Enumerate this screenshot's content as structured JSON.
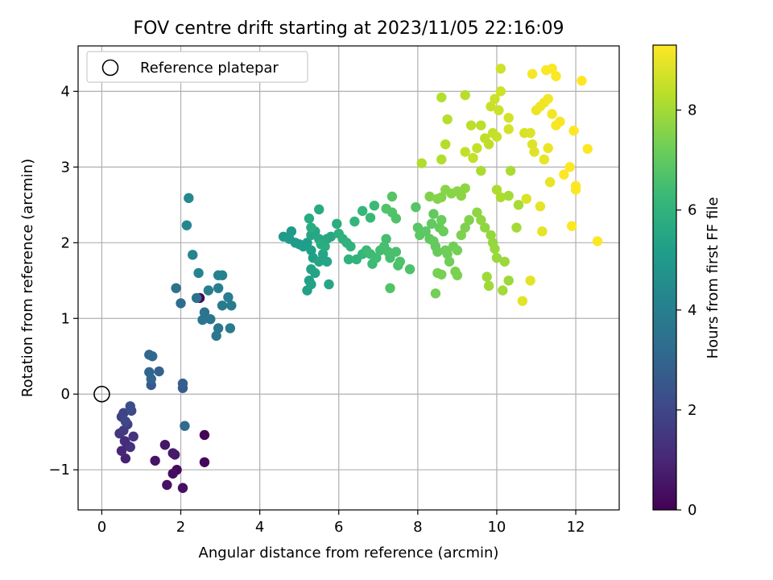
{
  "chart_data": {
    "type": "scatter",
    "title": "FOV centre drift starting at 2023/11/05 22:16:09",
    "xlabel": "Angular distance from reference (arcmin)",
    "ylabel": "Rotation from reference (arcmin)",
    "xlim": [
      -0.6,
      13.1
    ],
    "ylim": [
      -1.53,
      4.6
    ],
    "xticks": [
      0,
      2,
      4,
      6,
      8,
      10,
      12
    ],
    "yticks": [
      -1,
      0,
      1,
      2,
      3,
      4
    ],
    "xtick_labels": [
      "0",
      "2",
      "4",
      "6",
      "8",
      "10",
      "12"
    ],
    "ytick_labels": [
      "−1",
      "0",
      "1",
      "2",
      "3",
      "4"
    ],
    "grid": true,
    "legend": {
      "position": "upper-left",
      "entries": [
        "Reference platepar"
      ]
    },
    "reference_point": {
      "x": 0,
      "y": 0,
      "marker": "open-circle"
    },
    "colorbar": {
      "label": "Hours from first FF file",
      "min": 0,
      "max": 9.3,
      "ticks": [
        0,
        2,
        4,
        6,
        8
      ],
      "tick_labels": [
        "0",
        "2",
        "4",
        "6",
        "8"
      ],
      "colormap": "viridis",
      "stops": [
        "#440154",
        "#482878",
        "#3e4989",
        "#31688e",
        "#26828e",
        "#1f9e89",
        "#35b779",
        "#6ece58",
        "#b5de2b",
        "#fde725"
      ]
    },
    "series": [
      {
        "marker": "filled-circle",
        "points": [
          [
            2.48,
            1.27,
            0.05
          ],
          [
            2.6,
            -0.54,
            0.1
          ],
          [
            2.6,
            -0.9,
            0.15
          ],
          [
            1.9,
            -1.0,
            0.3
          ],
          [
            1.8,
            -1.05,
            0.35
          ],
          [
            2.05,
            -1.24,
            0.4
          ],
          [
            1.65,
            -1.2,
            0.45
          ],
          [
            1.35,
            -0.88,
            0.5
          ],
          [
            1.6,
            -0.67,
            0.55
          ],
          [
            1.85,
            -0.8,
            0.6
          ],
          [
            1.8,
            -0.78,
            0.65
          ],
          [
            0.6,
            -0.85,
            0.9
          ],
          [
            0.5,
            -0.75,
            1.0
          ],
          [
            0.65,
            -0.68,
            1.1
          ],
          [
            0.58,
            -0.62,
            1.2
          ],
          [
            0.72,
            -0.7,
            1.3
          ],
          [
            0.8,
            -0.56,
            1.4
          ],
          [
            0.45,
            -0.52,
            1.5
          ],
          [
            0.55,
            -0.48,
            1.6
          ],
          [
            0.65,
            -0.4,
            1.7
          ],
          [
            0.5,
            -0.3,
            1.8
          ],
          [
            0.55,
            -0.25,
            1.9
          ],
          [
            0.6,
            -0.36,
            2.0
          ],
          [
            0.75,
            -0.22,
            2.1
          ],
          [
            0.72,
            -0.16,
            2.2
          ],
          [
            1.25,
            0.12,
            2.6
          ],
          [
            2.05,
            0.08,
            2.7
          ],
          [
            2.05,
            0.14,
            2.8
          ],
          [
            1.45,
            0.3,
            2.9
          ],
          [
            1.2,
            0.29,
            3.0
          ],
          [
            1.25,
            0.2,
            3.05
          ],
          [
            1.2,
            0.52,
            3.1
          ],
          [
            1.28,
            0.5,
            3.15
          ],
          [
            2.1,
            -0.42,
            3.2
          ],
          [
            2.0,
            1.2,
            3.3
          ],
          [
            1.88,
            1.4,
            3.4
          ],
          [
            2.4,
            1.27,
            3.45
          ],
          [
            2.6,
            1.0,
            3.5
          ],
          [
            2.6,
            1.08,
            3.55
          ],
          [
            2.55,
            0.98,
            3.6
          ],
          [
            2.75,
            0.99,
            3.65
          ],
          [
            2.9,
            0.77,
            3.7
          ],
          [
            2.95,
            0.87,
            3.75
          ],
          [
            3.05,
            1.17,
            3.8
          ],
          [
            3.25,
            0.87,
            3.85
          ],
          [
            3.28,
            1.17,
            3.9
          ],
          [
            3.2,
            1.28,
            3.95
          ],
          [
            2.7,
            1.37,
            4.0
          ],
          [
            2.95,
            1.4,
            4.0
          ],
          [
            2.95,
            1.57,
            4.05
          ],
          [
            3.05,
            1.57,
            4.1
          ],
          [
            2.45,
            1.6,
            4.15
          ],
          [
            2.3,
            1.84,
            4.2
          ],
          [
            2.15,
            2.23,
            4.3
          ],
          [
            2.2,
            2.59,
            4.4
          ],
          [
            4.6,
            2.08,
            5.0
          ],
          [
            4.8,
            2.15,
            5.0
          ],
          [
            4.75,
            2.05,
            5.05
          ],
          [
            4.9,
            2.0,
            5.1
          ],
          [
            5.0,
            1.98,
            5.1
          ],
          [
            5.1,
            1.95,
            5.15
          ],
          [
            5.2,
            2.0,
            5.15
          ],
          [
            5.3,
            1.9,
            5.2
          ],
          [
            5.35,
            1.8,
            5.25
          ],
          [
            5.2,
            1.37,
            5.3
          ],
          [
            5.25,
            1.5,
            5.3
          ],
          [
            5.3,
            1.45,
            5.35
          ],
          [
            5.3,
            1.65,
            5.35
          ],
          [
            5.5,
            1.75,
            5.4
          ],
          [
            5.4,
            1.6,
            5.4
          ],
          [
            5.6,
            1.85,
            5.45
          ],
          [
            5.7,
            1.75,
            5.45
          ],
          [
            5.75,
            1.45,
            5.5
          ],
          [
            5.3,
            2.1,
            5.5
          ],
          [
            5.4,
            2.15,
            5.5
          ],
          [
            5.5,
            2.05,
            5.55
          ],
          [
            5.6,
            2.0,
            5.55
          ],
          [
            5.7,
            2.05,
            5.6
          ],
          [
            5.8,
            2.08,
            5.6
          ],
          [
            5.5,
            2.44,
            5.65
          ],
          [
            5.25,
            2.32,
            5.65
          ],
          [
            5.3,
            2.2,
            5.7
          ],
          [
            5.55,
            1.98,
            5.7
          ],
          [
            5.65,
            1.95,
            5.75
          ],
          [
            5.95,
            2.25,
            5.8
          ],
          [
            6.0,
            2.12,
            5.85
          ],
          [
            6.1,
            2.05,
            5.9
          ],
          [
            6.2,
            2.0,
            5.95
          ],
          [
            6.3,
            1.95,
            6.0
          ],
          [
            6.25,
            1.78,
            6.0
          ],
          [
            6.45,
            1.78,
            6.05
          ],
          [
            6.6,
            1.85,
            6.1
          ],
          [
            6.4,
            2.28,
            6.15
          ],
          [
            6.6,
            2.42,
            6.2
          ],
          [
            6.8,
            2.33,
            6.25
          ],
          [
            6.9,
            2.49,
            6.3
          ],
          [
            6.7,
            1.9,
            6.3
          ],
          [
            6.8,
            1.85,
            6.35
          ],
          [
            6.85,
            1.72,
            6.35
          ],
          [
            6.95,
            1.8,
            6.4
          ],
          [
            7.05,
            1.9,
            6.45
          ],
          [
            7.15,
            1.95,
            6.5
          ],
          [
            7.2,
            2.05,
            6.5
          ],
          [
            7.25,
            1.88,
            6.55
          ],
          [
            7.3,
            1.8,
            6.55
          ],
          [
            7.45,
            1.88,
            6.6
          ],
          [
            7.5,
            1.7,
            6.6
          ],
          [
            7.55,
            1.75,
            6.65
          ],
          [
            7.8,
            1.65,
            6.65
          ],
          [
            7.35,
            2.4,
            6.7
          ],
          [
            7.45,
            2.32,
            6.7
          ],
          [
            7.2,
            2.45,
            6.75
          ],
          [
            7.3,
            1.4,
            6.75
          ],
          [
            7.35,
            2.61,
            6.8
          ],
          [
            7.95,
            2.47,
            6.8
          ],
          [
            8.0,
            2.2,
            6.85
          ],
          [
            8.05,
            2.1,
            6.9
          ],
          [
            8.2,
            2.15,
            6.9
          ],
          [
            8.3,
            2.05,
            6.95
          ],
          [
            8.35,
            2.25,
            7.0
          ],
          [
            8.4,
            2.38,
            7.0
          ],
          [
            8.4,
            2.02,
            7.05
          ],
          [
            8.45,
            1.95,
            7.05
          ],
          [
            8.5,
            1.88,
            7.1
          ],
          [
            8.55,
            2.2,
            7.1
          ],
          [
            8.6,
            2.3,
            7.15
          ],
          [
            8.65,
            2.15,
            7.15
          ],
          [
            8.7,
            1.9,
            7.2
          ],
          [
            8.75,
            1.85,
            7.2
          ],
          [
            8.8,
            1.75,
            7.25
          ],
          [
            8.9,
            1.95,
            7.25
          ],
          [
            9.0,
            1.9,
            7.3
          ],
          [
            8.45,
            1.33,
            7.3
          ],
          [
            8.5,
            1.6,
            7.35
          ],
          [
            8.6,
            1.58,
            7.35
          ],
          [
            8.95,
            1.62,
            7.4
          ],
          [
            9.0,
            1.57,
            7.4
          ],
          [
            9.1,
            2.1,
            7.45
          ],
          [
            9.2,
            2.2,
            7.45
          ],
          [
            9.3,
            2.3,
            7.5
          ],
          [
            8.3,
            2.61,
            7.5
          ],
          [
            8.5,
            2.58,
            7.55
          ],
          [
            8.6,
            2.6,
            7.55
          ],
          [
            8.7,
            2.7,
            7.6
          ],
          [
            8.85,
            2.65,
            7.6
          ],
          [
            9.0,
            2.68,
            7.65
          ],
          [
            9.1,
            2.62,
            7.65
          ],
          [
            9.2,
            2.72,
            7.7
          ],
          [
            9.5,
            2.4,
            7.7
          ],
          [
            9.6,
            2.3,
            7.75
          ],
          [
            9.7,
            2.2,
            7.75
          ],
          [
            9.85,
            2.1,
            7.8
          ],
          [
            9.9,
            2.0,
            7.8
          ],
          [
            9.95,
            1.92,
            7.85
          ],
          [
            10.0,
            1.8,
            7.85
          ],
          [
            10.2,
            1.75,
            7.9
          ],
          [
            10.3,
            1.5,
            7.9
          ],
          [
            9.75,
            1.55,
            7.95
          ],
          [
            9.8,
            1.43,
            7.95
          ],
          [
            10.15,
            1.37,
            8.0
          ],
          [
            10.5,
            2.2,
            8.0
          ],
          [
            10.3,
            2.62,
            8.05
          ],
          [
            10.55,
            2.5,
            8.05
          ],
          [
            9.6,
            2.95,
            8.1
          ],
          [
            10.35,
            2.95,
            8.1
          ],
          [
            10.0,
            2.7,
            8.15
          ],
          [
            10.1,
            2.6,
            8.15
          ],
          [
            8.1,
            3.05,
            8.2
          ],
          [
            8.6,
            3.1,
            8.2
          ],
          [
            8.7,
            3.3,
            8.25
          ],
          [
            8.6,
            3.92,
            8.25
          ],
          [
            8.75,
            3.63,
            8.3
          ],
          [
            9.2,
            3.95,
            8.3
          ],
          [
            9.35,
            3.55,
            8.35
          ],
          [
            9.6,
            3.55,
            8.35
          ],
          [
            9.7,
            3.38,
            8.4
          ],
          [
            9.8,
            3.3,
            8.4
          ],
          [
            9.2,
            3.2,
            8.45
          ],
          [
            9.4,
            3.12,
            8.45
          ],
          [
            9.5,
            3.25,
            8.5
          ],
          [
            9.9,
            3.45,
            8.5
          ],
          [
            10.0,
            3.4,
            8.55
          ],
          [
            9.85,
            3.8,
            8.55
          ],
          [
            9.95,
            3.9,
            8.6
          ],
          [
            10.05,
            3.75,
            8.6
          ],
          [
            10.1,
            4.0,
            8.65
          ],
          [
            10.1,
            4.3,
            8.65
          ],
          [
            10.3,
            3.65,
            8.7
          ],
          [
            10.3,
            3.5,
            8.7
          ],
          [
            10.7,
            3.45,
            8.75
          ],
          [
            10.75,
            2.58,
            8.8
          ],
          [
            10.85,
            3.45,
            8.8
          ],
          [
            10.9,
            3.3,
            8.85
          ],
          [
            10.95,
            3.2,
            8.85
          ],
          [
            10.85,
            1.5,
            8.9
          ],
          [
            10.65,
            1.23,
            8.9
          ],
          [
            11.15,
            2.15,
            8.95
          ],
          [
            11.1,
            2.48,
            8.95
          ],
          [
            11.2,
            3.1,
            9.0
          ],
          [
            11.35,
            2.8,
            9.0
          ],
          [
            11.3,
            3.25,
            9.05
          ],
          [
            11.0,
            3.75,
            9.05
          ],
          [
            11.1,
            3.8,
            9.1
          ],
          [
            11.2,
            3.85,
            9.1
          ],
          [
            11.3,
            3.9,
            9.15
          ],
          [
            11.4,
            3.7,
            9.15
          ],
          [
            11.5,
            3.55,
            9.2
          ],
          [
            11.6,
            3.6,
            9.2
          ],
          [
            10.9,
            4.23,
            9.2
          ],
          [
            11.25,
            4.28,
            9.25
          ],
          [
            11.4,
            4.3,
            9.25
          ],
          [
            11.5,
            4.2,
            9.25
          ],
          [
            12.15,
            4.14,
            9.3
          ],
          [
            12.3,
            3.24,
            9.3
          ],
          [
            11.95,
            3.48,
            9.3
          ],
          [
            11.7,
            2.9,
            9.3
          ],
          [
            11.85,
            3.0,
            9.3
          ],
          [
            12.0,
            2.7,
            9.3
          ],
          [
            12.0,
            2.75,
            9.3
          ],
          [
            11.9,
            2.22,
            9.3
          ],
          [
            12.55,
            2.02,
            9.3
          ]
        ]
      }
    ]
  }
}
